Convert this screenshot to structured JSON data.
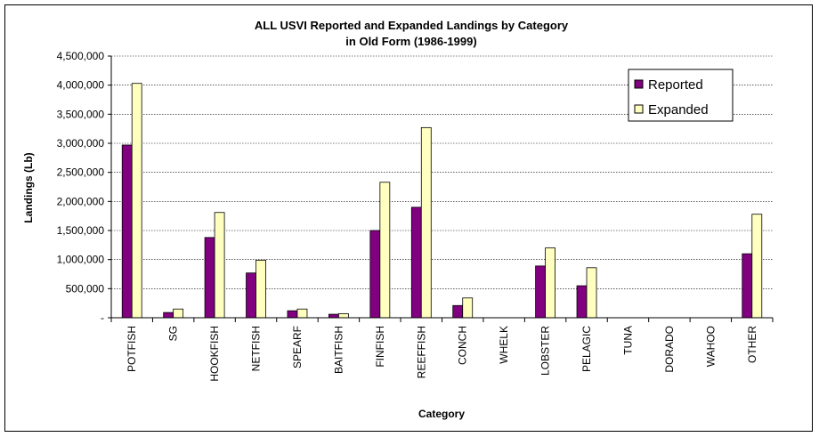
{
  "chart_data": {
    "type": "bar",
    "title": "ALL USVI  Reported and Expanded  Landings by Category",
    "subtitle": "in  Old  Form (1986-1999)",
    "xlabel": "Category",
    "ylabel": "Landings (Lb)",
    "ylim": [
      0,
      4500000
    ],
    "yticks": [
      "-",
      "500,000",
      "1,000,000",
      "1,500,000",
      "2,000,000",
      "2,500,000",
      "3,000,000",
      "3,500,000",
      "4,000,000",
      "4,500,000"
    ],
    "grid": true,
    "legend_position": "top-right",
    "categories": [
      "POTFISH",
      "SG",
      "HOOKFISH",
      "NETFISH",
      "SPEARF",
      "BAITFISH",
      "FINFISH",
      "REEFFISH",
      "CONCH",
      "WHELK",
      "LOBSTER",
      "PELAGIC",
      "TUNA",
      "DORADO",
      "WAHOO",
      "OTHER"
    ],
    "series": [
      {
        "name": "Reported",
        "color": "#800080",
        "values": [
          2970000,
          90000,
          1380000,
          770000,
          120000,
          60000,
          1500000,
          1900000,
          210000,
          0,
          890000,
          550000,
          0,
          0,
          0,
          1100000
        ]
      },
      {
        "name": "Expanded",
        "color": "#FFFFC0",
        "values": [
          4030000,
          150000,
          1810000,
          990000,
          150000,
          70000,
          2330000,
          3270000,
          340000,
          0,
          1200000,
          860000,
          0,
          0,
          0,
          1780000
        ]
      }
    ]
  }
}
